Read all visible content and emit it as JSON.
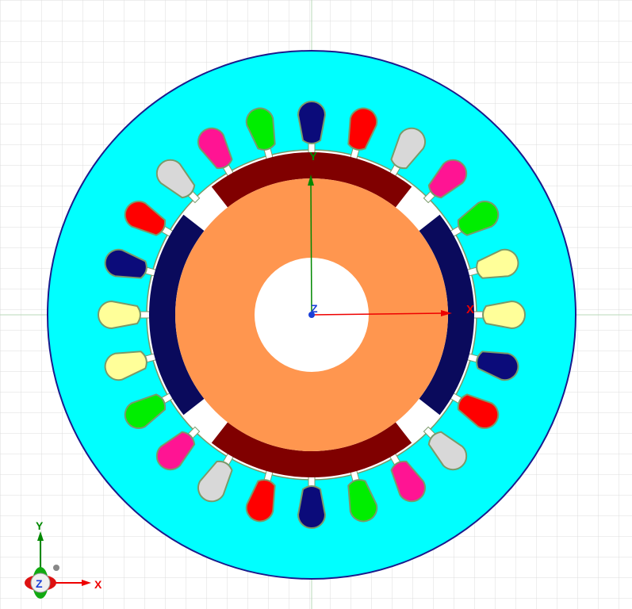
{
  "viewport": {
    "axes": {
      "x_label": "X",
      "y_label": "Y",
      "z_label": "Z"
    },
    "triad": {
      "x_label": "X",
      "y_label": "Y",
      "z_label": "Z"
    }
  },
  "model": {
    "stator_slots": 24,
    "rotor_poles": 4,
    "colors": {
      "stator": "#00ffff",
      "stator_outline": "#1a1a8c",
      "rotor_core": "#ff964f",
      "magnet_dark_red": "#800000",
      "magnet_navy": "#0a0a5c",
      "slot_outline": "#7a9a6a",
      "phase_colors": [
        "#0b0b7a",
        "#ff0000",
        "#d8d8d8",
        "#ff1493",
        "#00ee00",
        "#ffff99"
      ],
      "axis_x": "#ee0000",
      "axis_y": "#008800",
      "axis_z": "#1a3fd8",
      "grid": "#dcdcdc"
    }
  }
}
